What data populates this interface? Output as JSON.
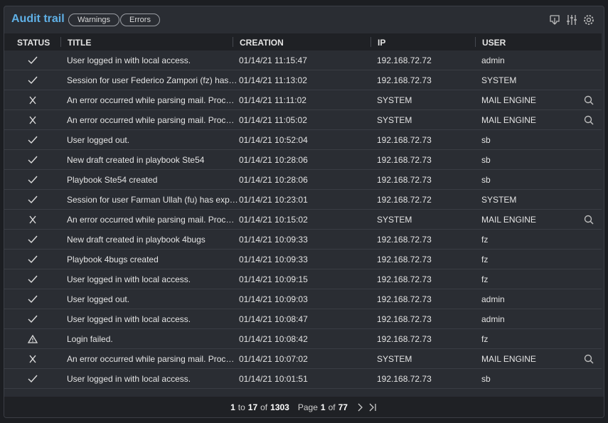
{
  "header": {
    "title": "Audit trail",
    "filters": [
      "Warnings",
      "Errors"
    ]
  },
  "table": {
    "columns": [
      "STATUS",
      "TITLE",
      "CREATION",
      "IP",
      "USER"
    ],
    "rows": [
      [
        "User logged in with local access.",
        "01/14/21 11:15:47",
        "192.168.72.72",
        "admin"
      ],
      [
        "Session for user Federico Zampori (fz) has…",
        "01/14/21 11:13:02",
        "192.168.72.73",
        "SYSTEM"
      ],
      [
        "An error occurred while parsing mail. Proc…",
        "01/14/21 11:11:02",
        "SYSTEM",
        "MAIL ENGINE"
      ],
      [
        "An error occurred while parsing mail. Proc…",
        "01/14/21 11:05:02",
        "SYSTEM",
        "MAIL ENGINE"
      ],
      [
        "User logged out.",
        "01/14/21 10:52:04",
        "192.168.72.73",
        "sb"
      ],
      [
        "New draft created in playbook Ste54",
        "01/14/21 10:28:06",
        "192.168.72.73",
        "sb"
      ],
      [
        "Playbook Ste54 created",
        "01/14/21 10:28:06",
        "192.168.72.73",
        "sb"
      ],
      [
        "Session for user Farman Ullah (fu) has exp…",
        "01/14/21 10:23:01",
        "192.168.72.72",
        "SYSTEM"
      ],
      [
        "An error occurred while parsing mail. Proc…",
        "01/14/21 10:15:02",
        "SYSTEM",
        "MAIL ENGINE"
      ],
      [
        "New draft created in playbook 4bugs",
        "01/14/21 10:09:33",
        "192.168.72.73",
        "fz"
      ],
      [
        "Playbook 4bugs created",
        "01/14/21 10:09:33",
        "192.168.72.73",
        "fz"
      ],
      [
        "User logged in with local access.",
        "01/14/21 10:09:15",
        "192.168.72.73",
        "fz"
      ],
      [
        "User logged out.",
        "01/14/21 10:09:03",
        "192.168.72.73",
        "admin"
      ],
      [
        "User logged in with local access.",
        "01/14/21 10:08:47",
        "192.168.72.73",
        "admin"
      ],
      [
        "Login failed.",
        "01/14/21 10:08:42",
        "192.168.72.73",
        "fz"
      ],
      [
        "An error occurred while parsing mail. Proc…",
        "01/14/21 10:07:02",
        "SYSTEM",
        "MAIL ENGINE"
      ],
      [
        "User logged in with local access.",
        "01/14/21 10:01:51",
        "192.168.72.73",
        "sb"
      ]
    ]
  },
  "pagination": {
    "from": 1,
    "to_label": "to",
    "to": 17,
    "of_label": "of",
    "total": 1303,
    "page_label": "Page",
    "page": 1,
    "pages_of_label": "of",
    "pages": 77
  }
}
